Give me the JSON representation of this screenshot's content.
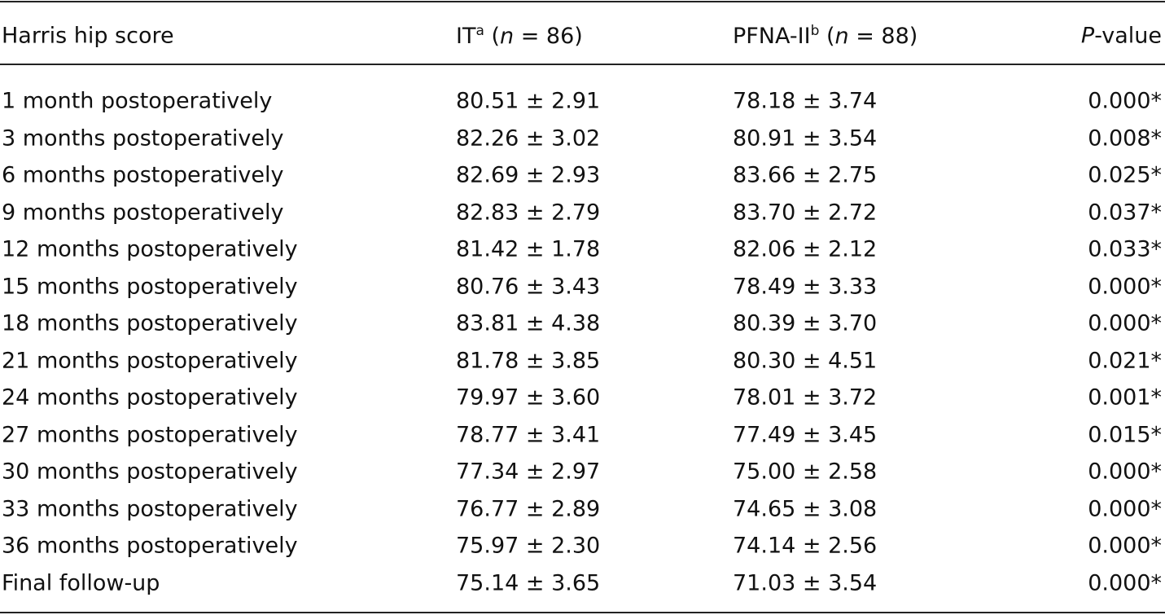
{
  "header": [
    [
      {
        "text": "Harris hip score"
      }
    ],
    [
      {
        "text": "IT"
      },
      {
        "text": "a",
        "style": "sup"
      },
      {
        "text": " ("
      },
      {
        "text": "n",
        "style": "italic"
      },
      {
        "text": " = 86)"
      }
    ],
    [
      {
        "text": "PFNA-II"
      },
      {
        "text": "b",
        "style": "sup"
      },
      {
        "text": " ("
      },
      {
        "text": "n",
        "style": "italic"
      },
      {
        "text": " = 88)"
      }
    ],
    [
      {
        "text": "P",
        "style": "italic"
      },
      {
        "text": "-value"
      }
    ]
  ],
  "rows": [
    [
      "1 month postoperatively",
      "80.51 ± 2.91",
      "78.18 ± 3.74",
      "0.000*"
    ],
    [
      "3 months postoperatively",
      "82.26 ± 3.02",
      "80.91 ± 3.54",
      "0.008*"
    ],
    [
      "6 months postoperatively",
      "82.69 ± 2.93",
      "83.66 ± 2.75",
      "0.025*"
    ],
    [
      "9 months postoperatively",
      "82.83 ± 2.79",
      "83.70 ± 2.72",
      "0.037*"
    ],
    [
      "12 months postoperatively",
      "81.42 ± 1.78",
      "82.06 ± 2.12",
      "0.033*"
    ],
    [
      "15 months postoperatively",
      "80.76 ± 3.43",
      "78.49 ± 3.33",
      "0.000*"
    ],
    [
      "18 months postoperatively",
      "83.81 ± 4.38",
      "80.39 ± 3.70",
      "0.000*"
    ],
    [
      "21 months postoperatively",
      "81.78 ± 3.85",
      "80.30 ± 4.51",
      "0.021*"
    ],
    [
      "24 months postoperatively",
      "79.97 ± 3.60",
      "78.01 ± 3.72",
      "0.001*"
    ],
    [
      "27 months postoperatively",
      "78.77 ± 3.41",
      "77.49 ± 3.45",
      "0.015*"
    ],
    [
      "30 months postoperatively",
      "77.34 ± 2.97",
      "75.00 ± 2.58",
      "0.000*"
    ],
    [
      "33 months postoperatively",
      "76.77 ± 2.89",
      "74.65 ± 3.08",
      "0.000*"
    ],
    [
      "36 months postoperatively",
      "75.97 ± 2.30",
      "74.14 ± 2.56",
      "0.000*"
    ],
    [
      "Final follow-up",
      "75.14 ± 3.65",
      "71.03 ± 3.54",
      "0.000*"
    ]
  ]
}
